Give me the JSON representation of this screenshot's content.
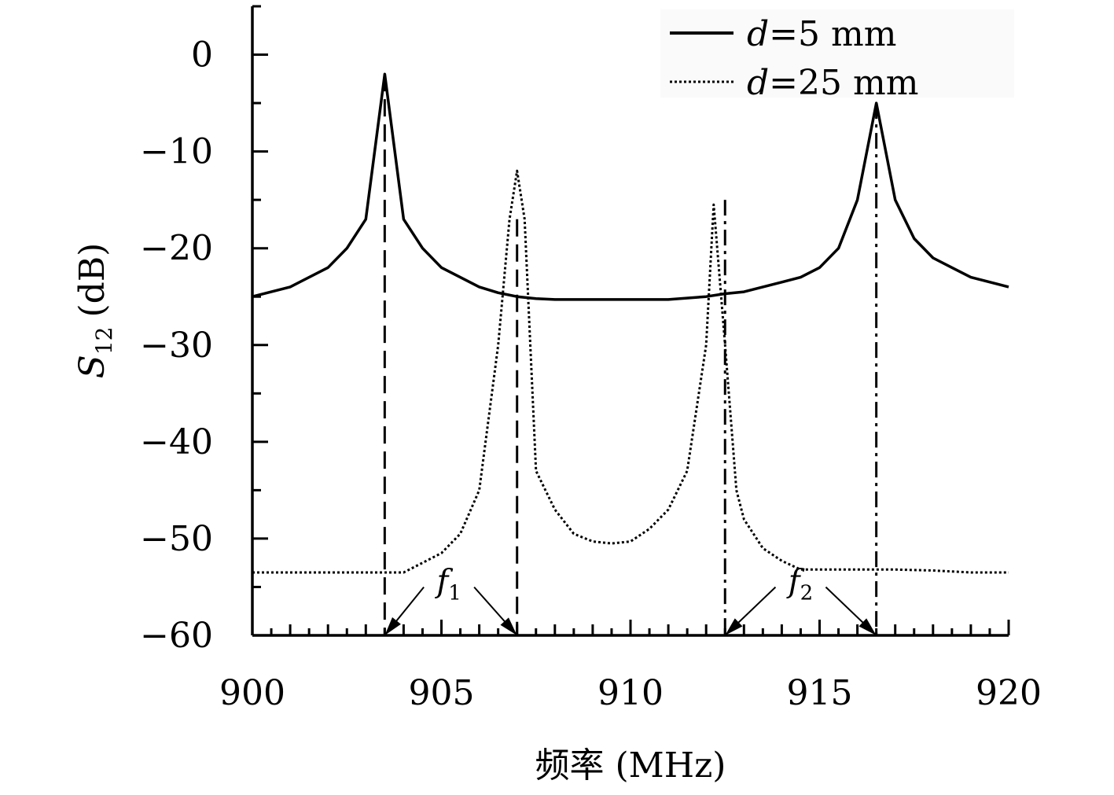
{
  "chart_data": {
    "type": "line",
    "xlabel": "频率 (MHz)",
    "ylabel": {
      "symbol": "S",
      "subscript": "12",
      "unit": "(dB)"
    },
    "xlim": [
      900,
      920
    ],
    "ylim": [
      -60,
      5
    ],
    "xticks": [
      900,
      905,
      910,
      915,
      920
    ],
    "xtick_labels": [
      "900",
      "905",
      "910",
      "915",
      "920"
    ],
    "yticks": [
      0,
      -10,
      -20,
      -30,
      -40,
      -50,
      -60
    ],
    "ytick_labels": [
      "0",
      "−10",
      "−20",
      "−30",
      "−40",
      "−50",
      "−60"
    ],
    "grid": false,
    "legend_position": "top-right",
    "series": [
      {
        "name": "d=5 mm",
        "legend_var": "d",
        "legend_rest": "=5 mm",
        "style": "solid",
        "color": "#000000",
        "x": [
          900,
          901,
          902,
          902.5,
          903,
          903.5,
          904,
          904.5,
          905,
          906,
          906.5,
          907,
          907.5,
          908,
          909,
          910,
          911,
          912,
          912.5,
          913,
          914,
          914.5,
          915,
          915.5,
          916,
          916.5,
          917,
          917.5,
          918,
          918.5,
          919,
          920
        ],
        "y": [
          -25,
          -24,
          -22,
          -20,
          -17,
          -2,
          -17,
          -20,
          -22,
          -24,
          -24.6,
          -25,
          -25.2,
          -25.3,
          -25.3,
          -25.3,
          -25.3,
          -25,
          -24.7,
          -24.5,
          -23.5,
          -23,
          -22,
          -20,
          -15,
          -5,
          -15,
          -19,
          -21,
          -22,
          -23,
          -24
        ]
      },
      {
        "name": "d=25 mm",
        "legend_var": "d",
        "legend_rest": "=25 mm",
        "style": "dotted",
        "color": "#000000",
        "x": [
          900,
          901,
          902,
          903,
          904,
          904.5,
          905,
          905.5,
          906,
          906.5,
          906.8,
          907,
          907.2,
          907.5,
          908,
          908.5,
          909,
          909.5,
          910,
          910.5,
          911,
          911.5,
          912,
          912.2,
          912.5,
          912.8,
          913,
          913.5,
          914,
          914.5,
          915,
          916,
          917,
          918,
          919,
          920
        ],
        "y": [
          -53.5,
          -53.5,
          -53.5,
          -53.5,
          -53.5,
          -52.5,
          -51.5,
          -49.5,
          -45,
          -30,
          -17,
          -12,
          -17,
          -43,
          -47,
          -49.5,
          -50.3,
          -50.5,
          -50.3,
          -49,
          -47,
          -43,
          -30,
          -15.5,
          -30,
          -45,
          -48,
          -51,
          -52.3,
          -53.2,
          -53.2,
          -53.2,
          -53.2,
          -53.3,
          -53.5,
          -53.5
        ]
      }
    ],
    "markers": [
      {
        "x": 903.5,
        "style": "dashed",
        "from_y": -2
      },
      {
        "x": 907,
        "style": "dashed",
        "from_y": -17
      },
      {
        "x": 912.5,
        "style": "dashdot",
        "from_y": -15
      },
      {
        "x": 916.5,
        "style": "dashdot",
        "from_y": -5
      }
    ],
    "annotations": [
      {
        "label": "f",
        "subscript": "1",
        "from_x": 903.5,
        "to_x": 907,
        "label_x": 905.2,
        "label_y": -55.5
      },
      {
        "label": "f",
        "subscript": "2",
        "from_x": 912.5,
        "to_x": 916.5,
        "label_x": 914.5,
        "label_y": -55.5
      }
    ]
  }
}
